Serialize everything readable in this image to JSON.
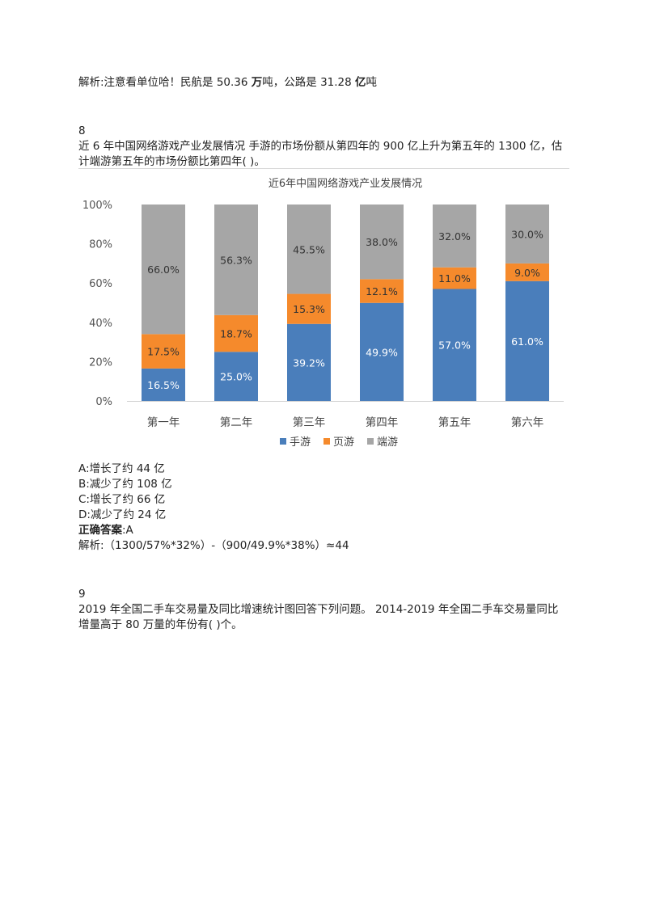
{
  "intro": {
    "prefix": "解析:注意看单位哈！民航是 50.36 ",
    "unit1": "万",
    "mid": "吨，公路是 31.28 ",
    "unit2": "亿",
    "suffix": "吨"
  },
  "q8": {
    "number": "8",
    "line1": "近 6 年中国网络游戏产业发展情况  手游的市场份额从第四年的 900 亿上升为第五年的 1300 亿，估",
    "line2": "计端游第五年的市场份额比第四年(  )。",
    "options": [
      "A:增长了约 44 亿",
      "B:减少了约 108 亿",
      "C:增长了约 66 亿",
      "D:减少了约 24 亿"
    ],
    "answer_label": "正确答案",
    "answer_value": ":A",
    "analysis": "解析:（1300/57%*32%）-（900/49.9%*38%）≈44"
  },
  "q9": {
    "number": "9",
    "line1": "2019 年全国二手车交易量及同比增速统计图回答下列问题。  2014-2019 年全国二手车交易量同比",
    "line2": "增量高于 80 万量的年份有(  )个。"
  },
  "chart_data": {
    "type": "bar",
    "stacked": true,
    "title": "近6年中国网络游戏产业发展情况",
    "categories": [
      "第一年",
      "第二年",
      "第三年",
      "第四年",
      "第五年",
      "第六年"
    ],
    "series": [
      {
        "name": "手游",
        "color": "#4a7ebb",
        "values": [
          16.5,
          25.0,
          39.2,
          49.9,
          57.0,
          61.0
        ]
      },
      {
        "name": "页游",
        "color": "#f58a2c",
        "values": [
          17.5,
          18.7,
          15.3,
          12.1,
          11.0,
          9.0
        ]
      },
      {
        "name": "端游",
        "color": "#a6a6a6",
        "values": [
          66.0,
          56.3,
          45.5,
          38.0,
          32.0,
          30.0
        ]
      }
    ],
    "data_labels": [
      [
        "16.5%",
        "25.0%",
        "39.2%",
        "49.9%",
        "57.0%",
        "61.0%"
      ],
      [
        "17.5%",
        "18.7%",
        "15.3%",
        "12.1%",
        "11.0%",
        "9.0%"
      ],
      [
        "66.0%",
        "56.3%",
        "45.5%",
        "38.0%",
        "32.0%",
        "30.0%"
      ]
    ],
    "y_ticks": [
      "0%",
      "20%",
      "40%",
      "60%",
      "80%",
      "100%"
    ],
    "ylim": [
      0,
      100
    ],
    "grid": false,
    "legend_position": "bottom"
  }
}
